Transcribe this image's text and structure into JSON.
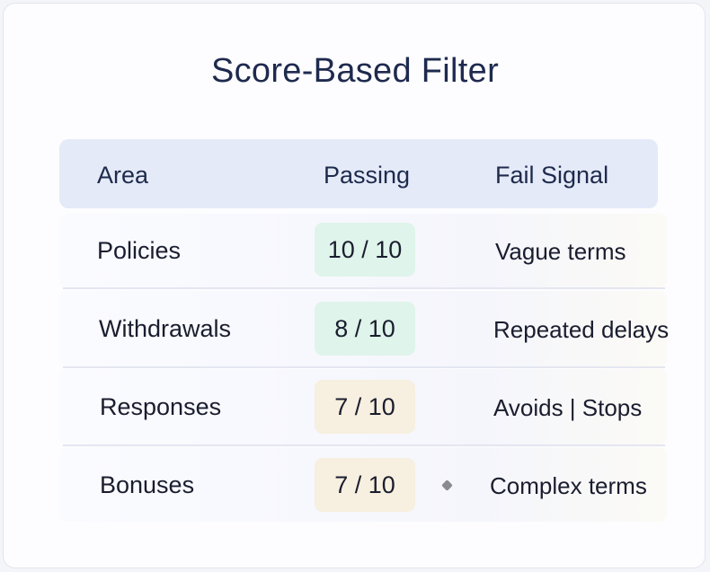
{
  "title": "Score-Based Filter",
  "columns": [
    "Area",
    "Passing",
    "Fail Signal"
  ],
  "rows": [
    {
      "area": "Policies",
      "passing": "10 / 10",
      "fail_signal": "Vague terms",
      "badge_color": "#dff4ea"
    },
    {
      "area": "Withdrawals",
      "passing": "8 / 10",
      "fail_signal": "Repeated delays",
      "badge_color": "#dff4ea"
    },
    {
      "area": "Responses",
      "passing": "7 / 10",
      "fail_signal": "Avoids | Stops",
      "badge_color": "#f7efdf"
    },
    {
      "area": "Bonuses",
      "passing": "7 / 10",
      "fail_signal": "Complex terms",
      "badge_color": "#f7efdf"
    }
  ]
}
